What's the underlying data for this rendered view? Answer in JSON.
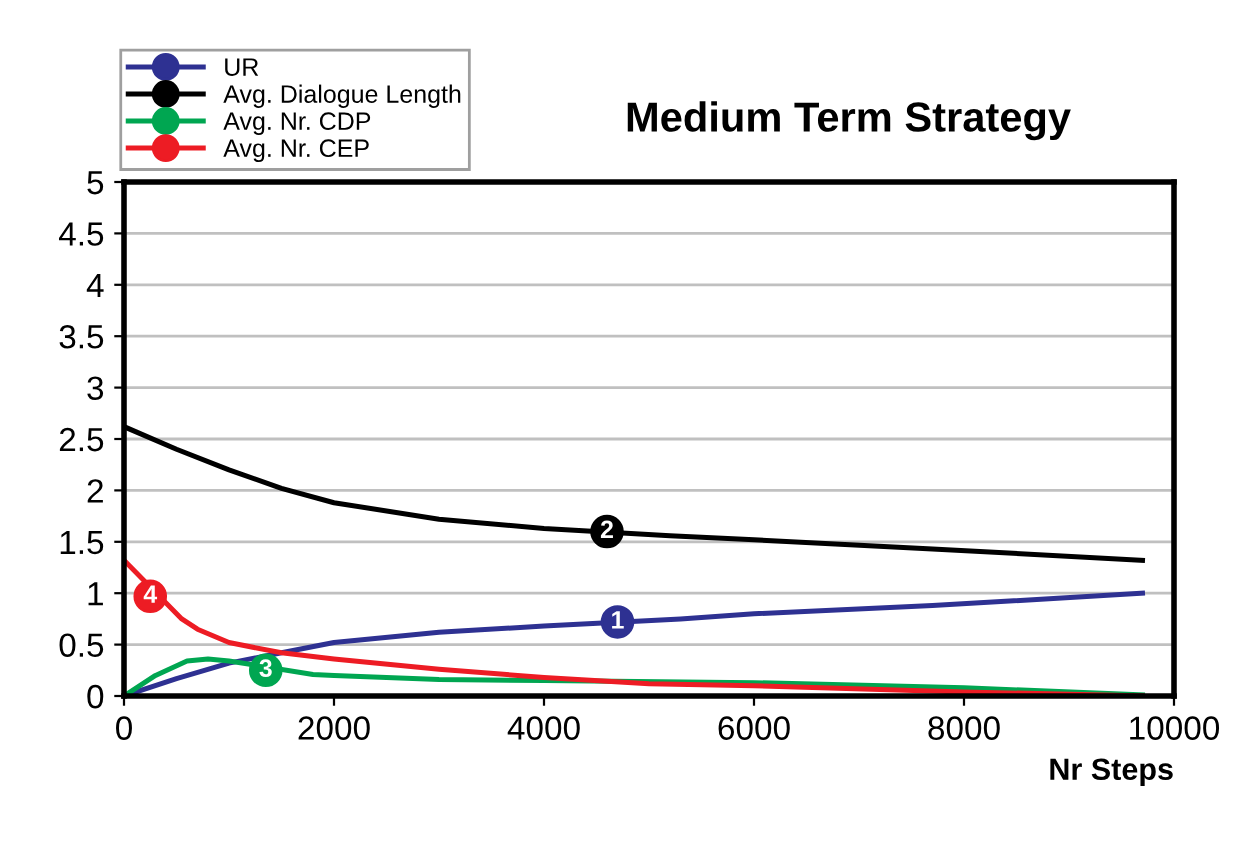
{
  "chart_data": {
    "type": "line",
    "title": "Medium Term Strategy",
    "xlabel": "Nr Steps",
    "xlim": [
      0,
      10000
    ],
    "xticks": [
      0,
      2000,
      4000,
      6000,
      8000,
      10000
    ],
    "ylim": [
      0,
      5
    ],
    "yticks": [
      0,
      0.5,
      1,
      1.5,
      2,
      2.5,
      3,
      3.5,
      4,
      4.5,
      5
    ],
    "grid": "y",
    "legend": "top left",
    "marker": "none",
    "line_style": "solid",
    "series": [
      {
        "name": "UR",
        "color": "#2e3192",
        "x": [
          0,
          500,
          1000,
          1500,
          2000,
          3000,
          4000,
          5300,
          6000,
          7700,
          9700
        ],
        "values": [
          0,
          0.17,
          0.32,
          0.42,
          0.52,
          0.62,
          0.68,
          0.75,
          0.8,
          0.88,
          1.0
        ]
      },
      {
        "name": "Avg. Dialogue Length",
        "color": "#000000",
        "x": [
          0,
          500,
          1000,
          1500,
          2000,
          3000,
          4000,
          5200,
          6000,
          7700,
          9700
        ],
        "values": [
          2.62,
          2.4,
          2.2,
          2.02,
          1.88,
          1.72,
          1.63,
          1.56,
          1.52,
          1.43,
          1.32
        ]
      },
      {
        "name": "Avg. Nr. CDP",
        "color": "#00a651",
        "x": [
          0,
          300,
          600,
          800,
          1000,
          1800,
          2000,
          3000,
          4000,
          6000,
          8000,
          9700
        ],
        "values": [
          0,
          0.2,
          0.34,
          0.36,
          0.34,
          0.21,
          0.2,
          0.16,
          0.15,
          0.13,
          0.08,
          0.01
        ]
      },
      {
        "name": "Avg. Nr. CEP",
        "color": "#ed1c24",
        "x": [
          0,
          550,
          700,
          1000,
          1500,
          2000,
          3000,
          4000,
          5000,
          6000,
          8000,
          9700
        ],
        "values": [
          1.32,
          0.75,
          0.65,
          0.52,
          0.42,
          0.36,
          0.26,
          0.18,
          0.12,
          0.1,
          0.04,
          0.0
        ]
      }
    ],
    "annotations": [
      {
        "text": "1",
        "x": 4700,
        "y": 0.72
      },
      {
        "text": "2",
        "x": 4600,
        "y": 1.6
      },
      {
        "text": "3",
        "x": 1350,
        "y": 0.25
      },
      {
        "text": "4",
        "x": 250,
        "y": 0.97
      }
    ]
  }
}
